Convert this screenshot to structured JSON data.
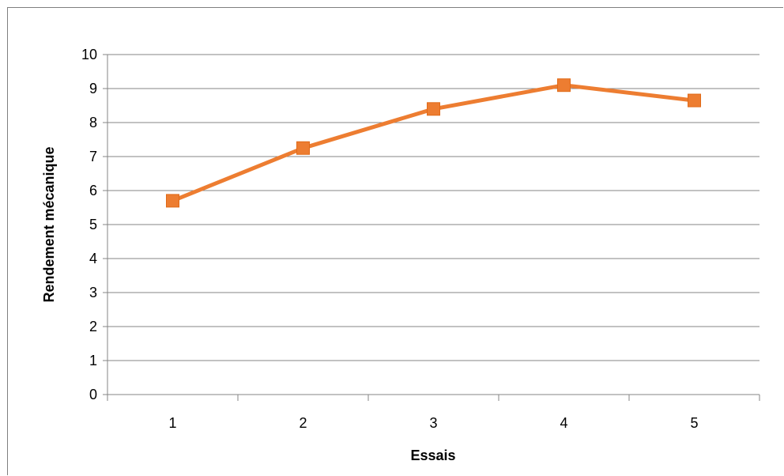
{
  "chart_data": {
    "type": "line",
    "x": [
      "1",
      "2",
      "3",
      "4",
      "5"
    ],
    "series": [
      {
        "values": [
          5.7,
          7.25,
          8.4,
          9.1,
          8.65
        ]
      }
    ],
    "xlabel": "Essais",
    "ylabel": "Rendement mécanique",
    "ylim": [
      0,
      10
    ],
    "yticks": [
      "0",
      "1",
      "2",
      "3",
      "4",
      "5",
      "6",
      "7",
      "8",
      "9",
      "10"
    ],
    "grid": "horizontal",
    "legend": "none",
    "colors": {
      "line": "#ED7D31",
      "marker": "#ED7D31",
      "marker_edge": "#E06A18",
      "grid": "#868686",
      "axis": "#868686"
    }
  }
}
